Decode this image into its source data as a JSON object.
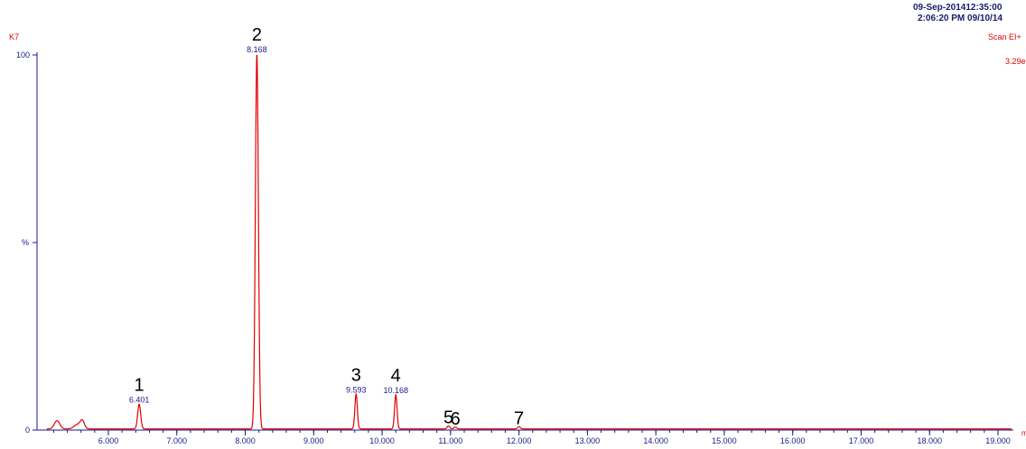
{
  "header": {
    "acquired": "09-Sep-201412:35:00",
    "printed": "2:06:20 PM  09/10/14",
    "sample": "K7",
    "scan_mode": "Scan EI+",
    "intensity": "3.29e"
  },
  "chart_data": {
    "type": "line",
    "color": "#e00000",
    "ylabel": "%",
    "xlabel_partial": "m",
    "xlim": [
      5.1,
      19.2
    ],
    "ylim": [
      0,
      100
    ],
    "xticks": [
      "6.000",
      "7.000",
      "8.000",
      "9.000",
      "10.000",
      "11.000",
      "12.000",
      "13.000",
      "14.000",
      "15.000",
      "16.000",
      "17.000",
      "18.000",
      "19.000"
    ],
    "yticks": [
      "0",
      "100"
    ],
    "baseline": [
      {
        "x": 5.25,
        "y": 2.2,
        "w": 0.04
      },
      {
        "x": 5.55,
        "y": 1.2,
        "w": 0.05
      },
      {
        "x": 5.62,
        "y": 2.0,
        "w": 0.03
      }
    ],
    "peaks": [
      {
        "number": "1",
        "rt": "6.401",
        "x": 6.45,
        "y": 6.6,
        "w": 0.022
      },
      {
        "number": "2",
        "rt": "8.168",
        "x": 8.17,
        "y": 100,
        "w": 0.022
      },
      {
        "number": "3",
        "rt": "9.593",
        "x": 9.62,
        "y": 9.3,
        "w": 0.018
      },
      {
        "number": "4",
        "rt": "10.168",
        "x": 10.2,
        "y": 9.1,
        "w": 0.018
      },
      {
        "number": "5",
        "rt": "",
        "x": 10.97,
        "y": 0.8,
        "w": 0.02
      },
      {
        "number": "6",
        "rt": "",
        "x": 11.07,
        "y": 0.5,
        "w": 0.02
      },
      {
        "number": "7",
        "rt": "",
        "x": 12.0,
        "y": 0.6,
        "w": 0.02
      }
    ]
  }
}
